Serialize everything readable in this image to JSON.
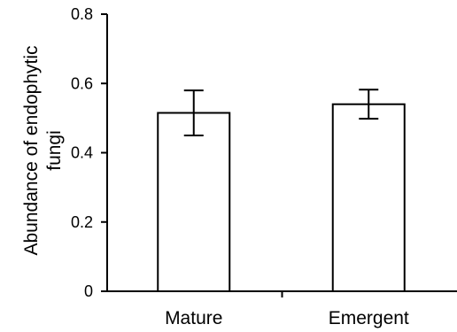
{
  "chart_data": {
    "type": "bar",
    "categories": [
      "Mature",
      "Emergent"
    ],
    "values": [
      0.515,
      0.54
    ],
    "error_upper": [
      0.58,
      0.582
    ],
    "error_lower": [
      0.45,
      0.498
    ],
    "title": "",
    "xlabel": "",
    "ylabel_lines": [
      "Abundance of endophytic",
      "fungi"
    ],
    "ylim": [
      0,
      0.8
    ],
    "yticks": [
      0,
      0.2,
      0.4,
      0.6,
      0.8
    ],
    "ytick_labels": [
      "0",
      "0.2",
      "0.4",
      "0.6",
      "0.8"
    ],
    "grid": false,
    "legend": "none",
    "bar_fill": "#ffffff",
    "bar_stroke": "#000000"
  }
}
